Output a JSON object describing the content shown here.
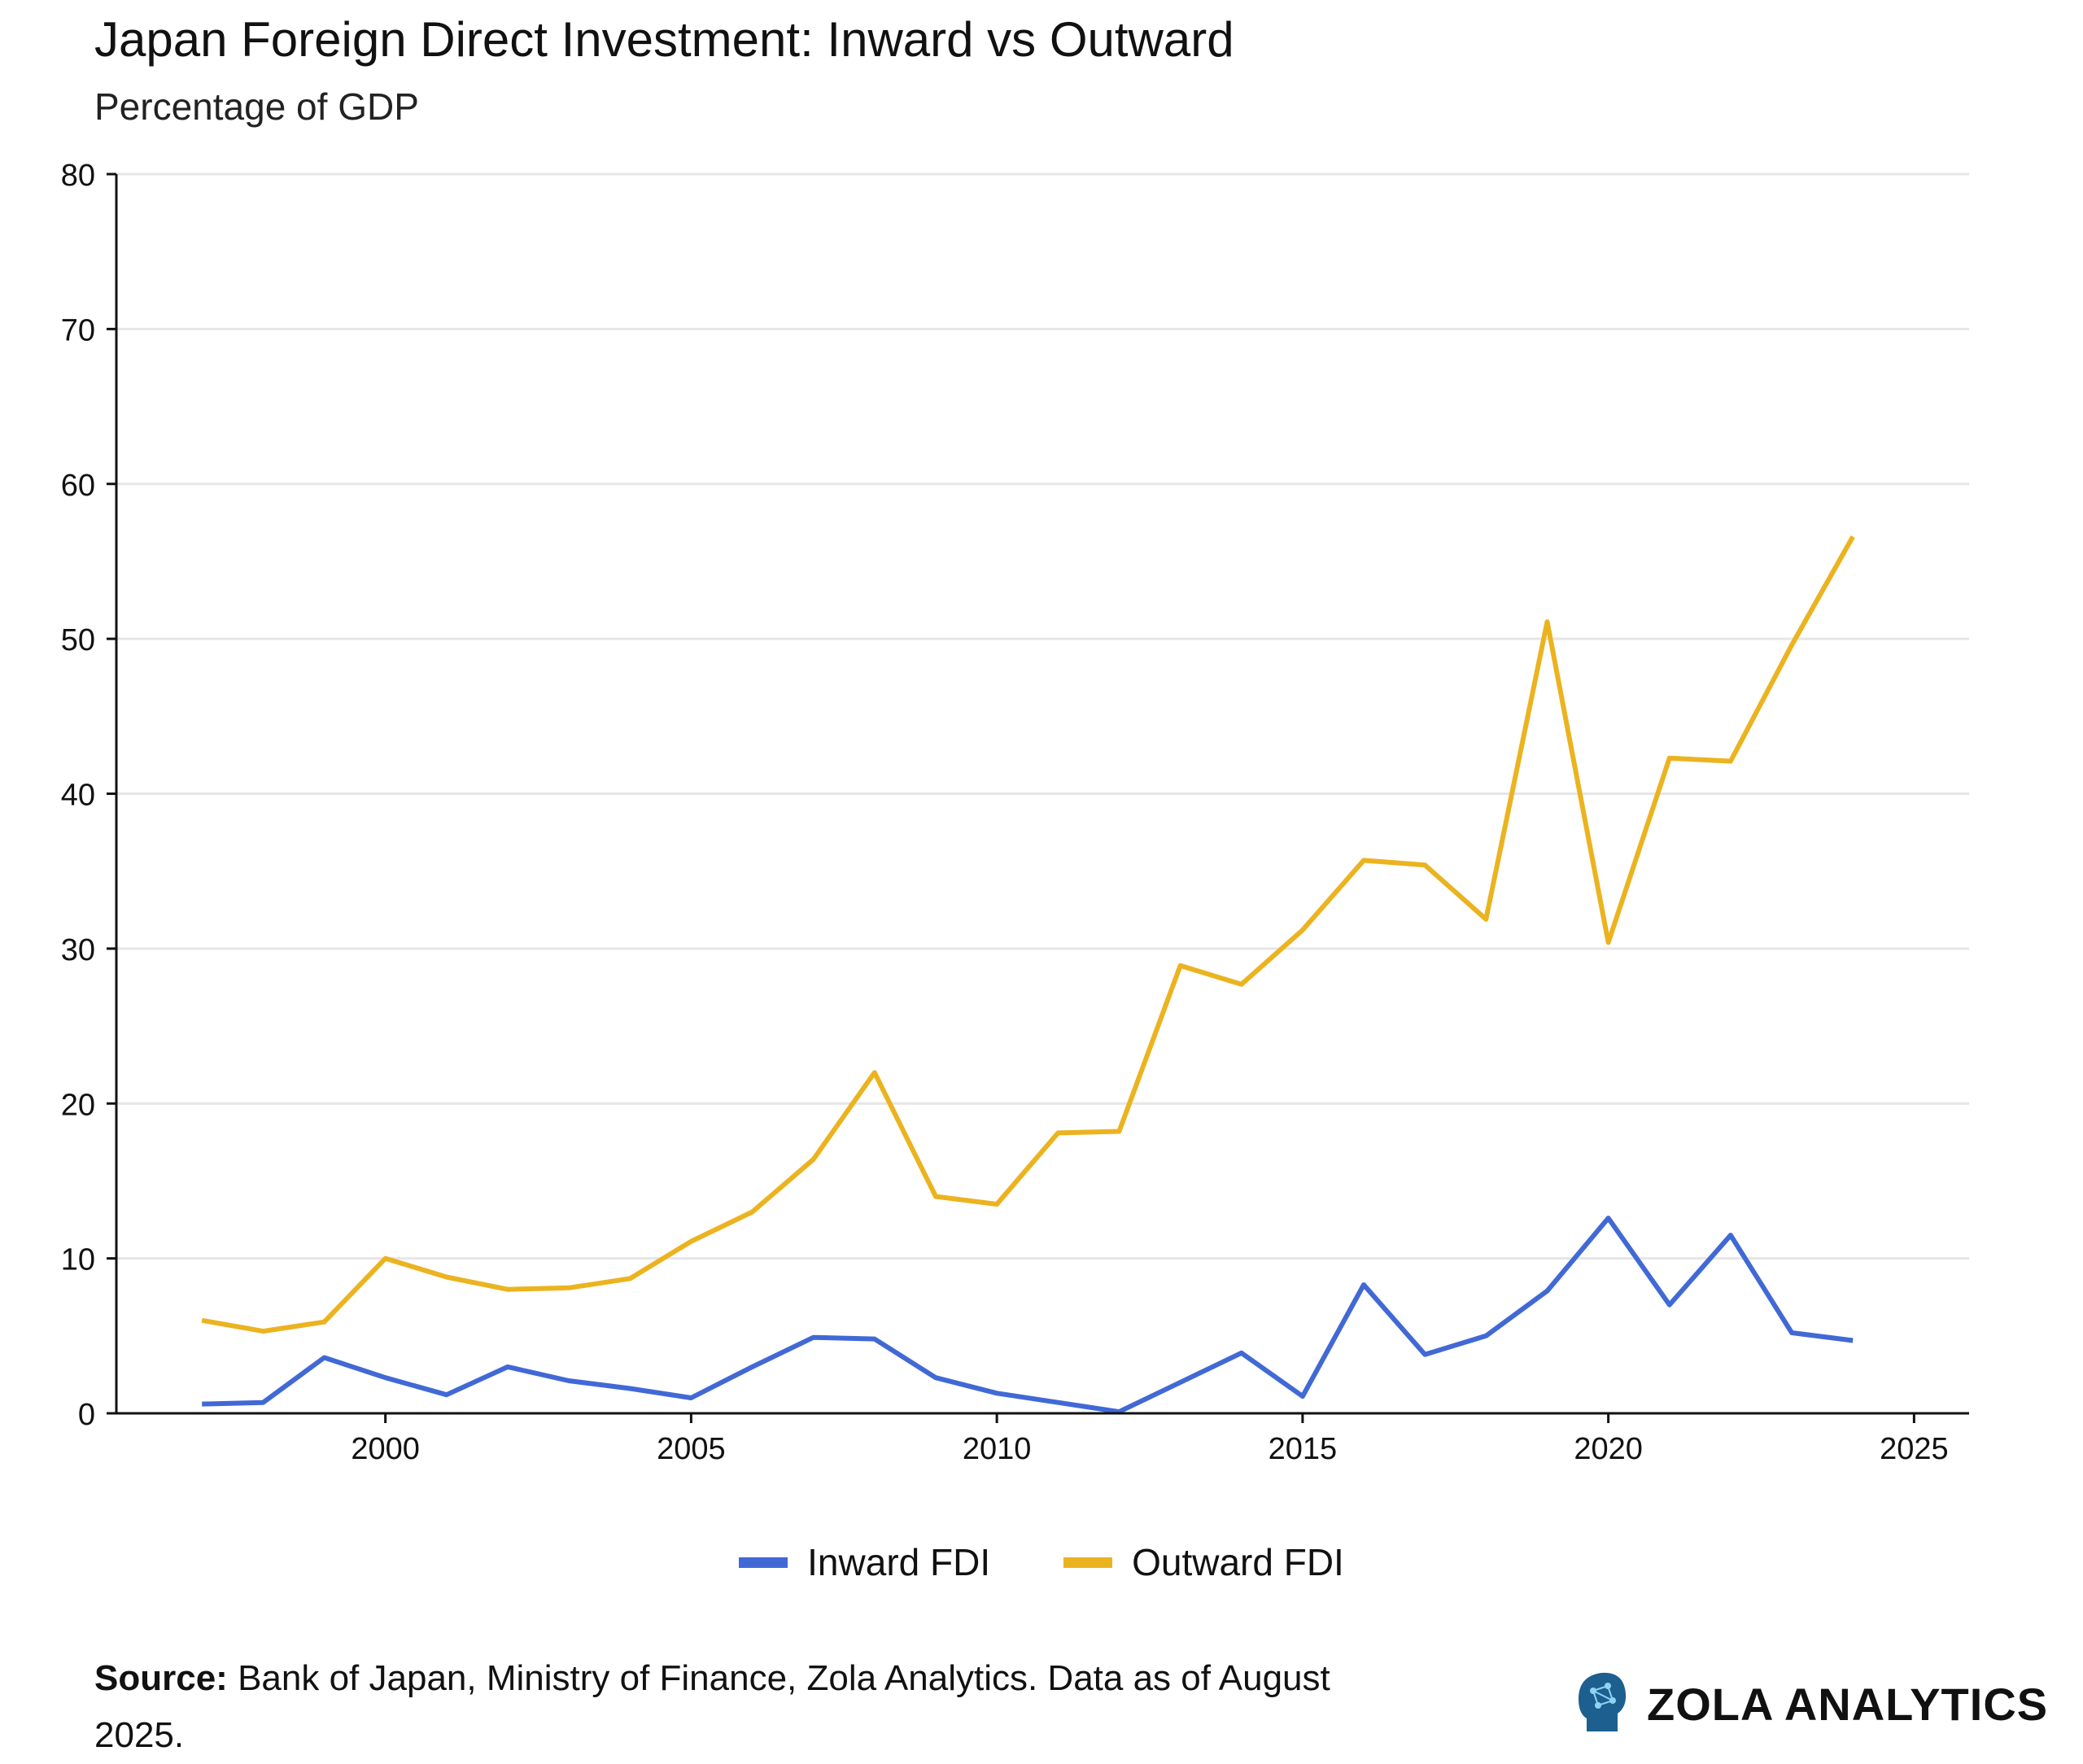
{
  "chart_data": {
    "type": "line",
    "title": "Japan Foreign Direct Investment: Inward vs Outward",
    "subtitle": "Percentage of GDP",
    "xlabel": "",
    "ylabel": "",
    "xlim": [
      1995.6,
      2025.9
    ],
    "ylim": [
      0,
      80
    ],
    "x_ticks": [
      2000,
      2005,
      2010,
      2015,
      2020,
      2025
    ],
    "y_ticks": [
      0,
      10,
      20,
      30,
      40,
      50,
      60,
      70,
      80
    ],
    "grid": "horizontal",
    "legend_position": "bottom-center",
    "x": [
      1997,
      1998,
      1999,
      2000,
      2001,
      2002,
      2003,
      2004,
      2005,
      2006,
      2007,
      2008,
      2009,
      2010,
      2011,
      2012,
      2013,
      2014,
      2015,
      2016,
      2017,
      2018,
      2019,
      2020,
      2021,
      2022,
      2023,
      2024
    ],
    "series": [
      {
        "name": "Inward FDI",
        "color": "#4169d6",
        "values": [
          0.6,
          0.7,
          3.6,
          2.3,
          1.2,
          3.0,
          2.1,
          1.6,
          1.0,
          3.0,
          4.9,
          4.8,
          2.3,
          1.3,
          0.7,
          0.1,
          2.0,
          3.9,
          1.1,
          8.3,
          3.8,
          5.0,
          7.9,
          12.6,
          7.0,
          11.5,
          5.2,
          4.7
        ]
      },
      {
        "name": "Outward FDI",
        "color": "#ebb31f",
        "values": [
          6.0,
          5.3,
          5.9,
          10.0,
          8.8,
          8.0,
          8.1,
          8.7,
          11.1,
          13.0,
          16.4,
          22.0,
          14.0,
          13.5,
          18.1,
          18.2,
          28.9,
          27.7,
          31.2,
          35.7,
          35.4,
          31.9,
          51.1,
          30.4,
          42.3,
          42.1,
          49.6,
          56.6
        ]
      }
    ]
  },
  "source": {
    "label": "Source:",
    "text": "Bank of Japan, Ministry of Finance, Zola Analytics. Data as of August 2025."
  },
  "brand": {
    "name": "ZOLA ANALYTICS",
    "icon": "brain-head-icon"
  },
  "colors": {
    "axis": "#111111",
    "grid": "#e6e6e6",
    "brand_icon": "#1d5f8e"
  }
}
